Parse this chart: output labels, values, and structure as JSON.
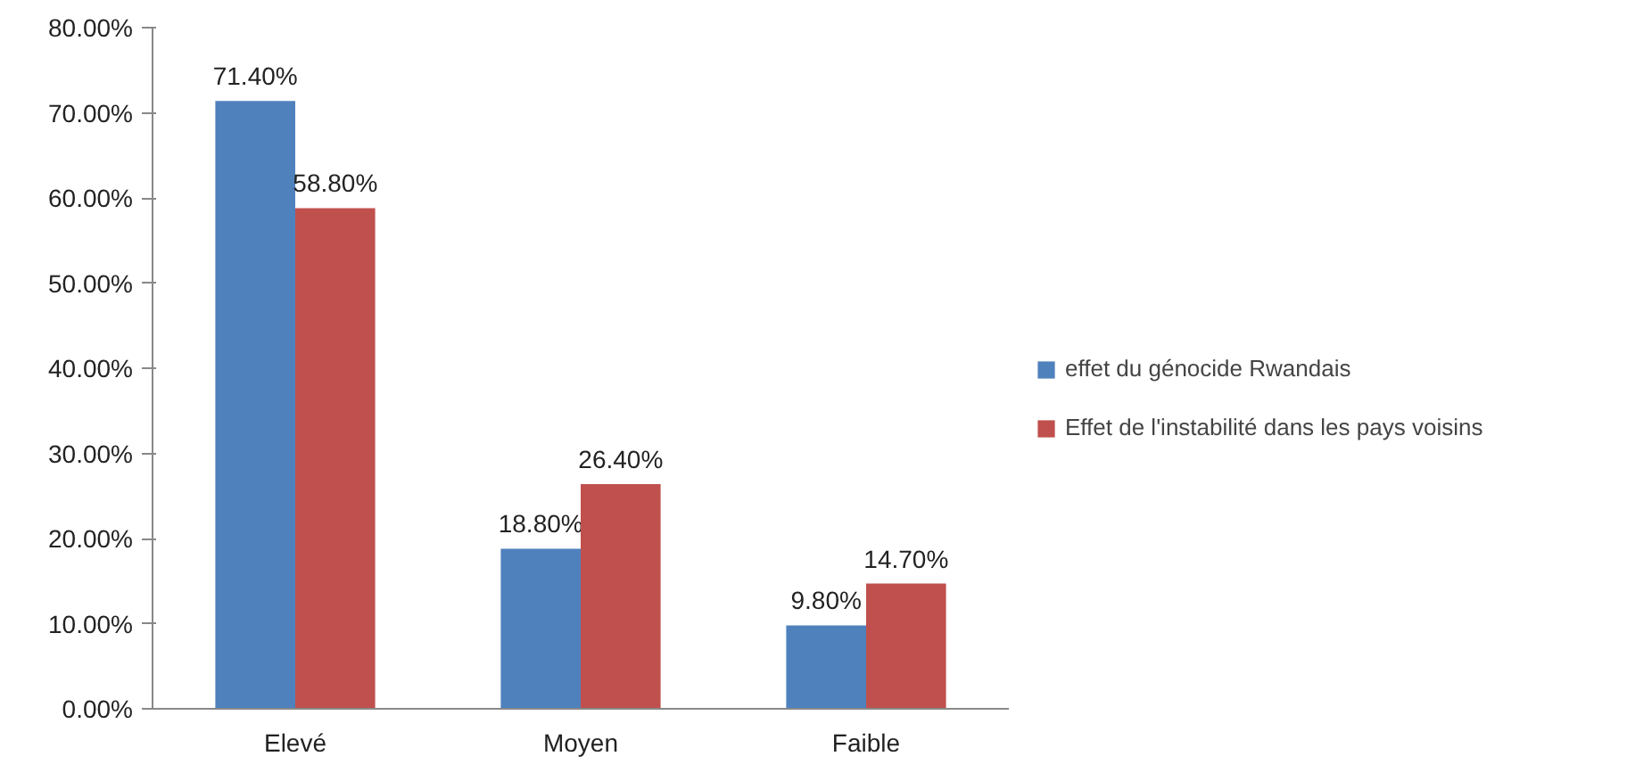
{
  "chart_data": {
    "type": "bar",
    "categories": [
      "Elevé",
      "Moyen",
      "Faible"
    ],
    "series": [
      {
        "name": "effet du génocide Rwandais",
        "color": "#4f81bd",
        "values": [
          71.4,
          18.8,
          9.8
        ],
        "value_labels": [
          "71.40%",
          "18.80%",
          "9.80%"
        ]
      },
      {
        "name": "Effet de l'instabilité dans les pays voisins",
        "color": "#c0504d",
        "values": [
          58.8,
          26.4,
          14.7
        ],
        "value_labels": [
          "58.80%",
          "26.40%",
          "14.70%"
        ]
      }
    ],
    "ylim": [
      0,
      80
    ],
    "yticks": [
      {
        "value": 0,
        "label": "0.00%"
      },
      {
        "value": 10,
        "label": "10.00%"
      },
      {
        "value": 20,
        "label": "20.00%"
      },
      {
        "value": 30,
        "label": "30.00%"
      },
      {
        "value": 40,
        "label": "40.00%"
      },
      {
        "value": 50,
        "label": "50.00%"
      },
      {
        "value": 60,
        "label": "60.00%"
      },
      {
        "value": 70,
        "label": "70.00%"
      },
      {
        "value": 80,
        "label": "80.00%"
      }
    ],
    "grid": false,
    "legend": "right"
  }
}
